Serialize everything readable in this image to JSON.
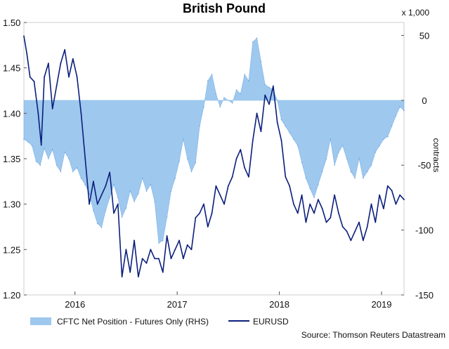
{
  "chart_data": {
    "type": "area",
    "title": "British Pound",
    "x_tick_labels": [
      "2016",
      "2017",
      "2018",
      "2019"
    ],
    "x_tick_positions": [
      2016.0,
      2017.0,
      2018.0,
      2019.0
    ],
    "x_range": [
      2015.5,
      2019.22
    ],
    "left_axis": {
      "label": "",
      "range": [
        1.2,
        1.5
      ],
      "ticks": [
        "1.20",
        "1.25",
        "1.30",
        "1.35",
        "1.40",
        "1.45",
        "1.50"
      ]
    },
    "right_axis": {
      "label": "contracts",
      "unit_note": "x 1,000",
      "range": [
        -150,
        60
      ],
      "ticks": [
        "50",
        "0",
        "-50",
        "-100",
        "-150"
      ]
    },
    "legend": {
      "placement": "bottom",
      "items": [
        "CFTC Net Position - Futures Only (RHS)",
        "EURUSD"
      ]
    },
    "source": "Source: Thomson Reuters Datastream",
    "series": [
      {
        "name": "CFTC Net Position - Futures Only (RHS)",
        "axis": "right",
        "style": "area",
        "color": "#9ec8ee",
        "points": [
          [
            2015.5,
            -30
          ],
          [
            2015.54,
            -32
          ],
          [
            2015.58,
            -35
          ],
          [
            2015.62,
            -47
          ],
          [
            2015.66,
            -50
          ],
          [
            2015.7,
            -37
          ],
          [
            2015.74,
            -45
          ],
          [
            2015.78,
            -38
          ],
          [
            2015.82,
            -50
          ],
          [
            2015.86,
            -55
          ],
          [
            2015.9,
            -40
          ],
          [
            2015.94,
            -45
          ],
          [
            2015.98,
            -55
          ],
          [
            2016.02,
            -52
          ],
          [
            2016.06,
            -60
          ],
          [
            2016.1,
            -65
          ],
          [
            2016.14,
            -72
          ],
          [
            2016.18,
            -85
          ],
          [
            2016.22,
            -95
          ],
          [
            2016.26,
            -98
          ],
          [
            2016.3,
            -85
          ],
          [
            2016.34,
            -75
          ],
          [
            2016.38,
            -65
          ],
          [
            2016.42,
            -75
          ],
          [
            2016.46,
            -90
          ],
          [
            2016.5,
            -83
          ],
          [
            2016.54,
            -70
          ],
          [
            2016.58,
            -78
          ],
          [
            2016.62,
            -72
          ],
          [
            2016.66,
            -60
          ],
          [
            2016.7,
            -70
          ],
          [
            2016.74,
            -65
          ],
          [
            2016.78,
            -78
          ],
          [
            2016.82,
            -110
          ],
          [
            2016.86,
            -108
          ],
          [
            2016.9,
            -90
          ],
          [
            2016.94,
            -70
          ],
          [
            2016.98,
            -60
          ],
          [
            2017.02,
            -47
          ],
          [
            2017.06,
            -30
          ],
          [
            2017.1,
            -45
          ],
          [
            2017.14,
            -55
          ],
          [
            2017.18,
            -48
          ],
          [
            2017.22,
            -20
          ],
          [
            2017.26,
            -5
          ],
          [
            2017.3,
            15
          ],
          [
            2017.34,
            20
          ],
          [
            2017.38,
            5
          ],
          [
            2017.42,
            -5
          ],
          [
            2017.46,
            2
          ],
          [
            2017.5,
            0
          ],
          [
            2017.54,
            -2
          ],
          [
            2017.58,
            8
          ],
          [
            2017.62,
            5
          ],
          [
            2017.66,
            20
          ],
          [
            2017.7,
            15
          ],
          [
            2017.74,
            45
          ],
          [
            2017.78,
            48
          ],
          [
            2017.82,
            30
          ],
          [
            2017.86,
            12
          ],
          [
            2017.9,
            10
          ],
          [
            2017.94,
            8
          ],
          [
            2017.98,
            0
          ],
          [
            2018.02,
            -15
          ],
          [
            2018.06,
            -20
          ],
          [
            2018.1,
            -25
          ],
          [
            2018.14,
            -30
          ],
          [
            2018.18,
            -35
          ],
          [
            2018.22,
            -48
          ],
          [
            2018.26,
            -60
          ],
          [
            2018.3,
            -68
          ],
          [
            2018.34,
            -75
          ],
          [
            2018.38,
            -65
          ],
          [
            2018.42,
            -55
          ],
          [
            2018.46,
            -45
          ],
          [
            2018.5,
            -30
          ],
          [
            2018.54,
            -50
          ],
          [
            2018.58,
            -40
          ],
          [
            2018.62,
            -35
          ],
          [
            2018.66,
            -45
          ],
          [
            2018.7,
            -55
          ],
          [
            2018.74,
            -60
          ],
          [
            2018.78,
            -45
          ],
          [
            2018.82,
            -60
          ],
          [
            2018.86,
            -55
          ],
          [
            2018.9,
            -50
          ],
          [
            2018.94,
            -40
          ],
          [
            2018.98,
            -35
          ],
          [
            2019.02,
            -30
          ],
          [
            2019.06,
            -28
          ],
          [
            2019.1,
            -20
          ],
          [
            2019.14,
            -12
          ],
          [
            2019.18,
            -5
          ],
          [
            2019.22,
            -8
          ]
        ]
      },
      {
        "name": "EURUSD",
        "axis": "left",
        "style": "line",
        "color": "#0b1f7c",
        "points": [
          [
            2015.5,
            1.485
          ],
          [
            2015.53,
            1.465
          ],
          [
            2015.56,
            1.44
          ],
          [
            2015.6,
            1.435
          ],
          [
            2015.64,
            1.4
          ],
          [
            2015.67,
            1.365
          ],
          [
            2015.7,
            1.44
          ],
          [
            2015.74,
            1.455
          ],
          [
            2015.78,
            1.405
          ],
          [
            2015.82,
            1.43
          ],
          [
            2015.86,
            1.455
          ],
          [
            2015.9,
            1.47
          ],
          [
            2015.94,
            1.44
          ],
          [
            2015.98,
            1.46
          ],
          [
            2016.02,
            1.44
          ],
          [
            2016.06,
            1.4
          ],
          [
            2016.1,
            1.35
          ],
          [
            2016.14,
            1.3
          ],
          [
            2016.18,
            1.325
          ],
          [
            2016.22,
            1.3
          ],
          [
            2016.26,
            1.31
          ],
          [
            2016.3,
            1.32
          ],
          [
            2016.34,
            1.335
          ],
          [
            2016.38,
            1.29
          ],
          [
            2016.42,
            1.3
          ],
          [
            2016.46,
            1.22
          ],
          [
            2016.5,
            1.25
          ],
          [
            2016.54,
            1.225
          ],
          [
            2016.58,
            1.26
          ],
          [
            2016.62,
            1.22
          ],
          [
            2016.66,
            1.24
          ],
          [
            2016.7,
            1.235
          ],
          [
            2016.74,
            1.25
          ],
          [
            2016.78,
            1.24
          ],
          [
            2016.82,
            1.24
          ],
          [
            2016.86,
            1.225
          ],
          [
            2016.9,
            1.265
          ],
          [
            2016.94,
            1.24
          ],
          [
            2016.98,
            1.25
          ],
          [
            2017.02,
            1.26
          ],
          [
            2017.06,
            1.24
          ],
          [
            2017.1,
            1.255
          ],
          [
            2017.14,
            1.25
          ],
          [
            2017.18,
            1.285
          ],
          [
            2017.22,
            1.29
          ],
          [
            2017.26,
            1.3
          ],
          [
            2017.3,
            1.275
          ],
          [
            2017.34,
            1.29
          ],
          [
            2017.38,
            1.32
          ],
          [
            2017.42,
            1.31
          ],
          [
            2017.46,
            1.3
          ],
          [
            2017.5,
            1.32
          ],
          [
            2017.54,
            1.33
          ],
          [
            2017.58,
            1.35
          ],
          [
            2017.62,
            1.36
          ],
          [
            2017.66,
            1.34
          ],
          [
            2017.7,
            1.33
          ],
          [
            2017.74,
            1.37
          ],
          [
            2017.78,
            1.4
          ],
          [
            2017.82,
            1.38
          ],
          [
            2017.86,
            1.42
          ],
          [
            2017.9,
            1.41
          ],
          [
            2017.94,
            1.43
          ],
          [
            2017.98,
            1.39
          ],
          [
            2018.02,
            1.37
          ],
          [
            2018.06,
            1.33
          ],
          [
            2018.1,
            1.32
          ],
          [
            2018.14,
            1.3
          ],
          [
            2018.18,
            1.29
          ],
          [
            2018.22,
            1.31
          ],
          [
            2018.26,
            1.28
          ],
          [
            2018.3,
            1.3
          ],
          [
            2018.34,
            1.29
          ],
          [
            2018.38,
            1.305
          ],
          [
            2018.42,
            1.295
          ],
          [
            2018.46,
            1.28
          ],
          [
            2018.5,
            1.285
          ],
          [
            2018.54,
            1.31
          ],
          [
            2018.58,
            1.29
          ],
          [
            2018.62,
            1.275
          ],
          [
            2018.66,
            1.27
          ],
          [
            2018.7,
            1.26
          ],
          [
            2018.74,
            1.27
          ],
          [
            2018.78,
            1.28
          ],
          [
            2018.82,
            1.26
          ],
          [
            2018.86,
            1.275
          ],
          [
            2018.9,
            1.3
          ],
          [
            2018.94,
            1.28
          ],
          [
            2018.98,
            1.31
          ],
          [
            2019.02,
            1.295
          ],
          [
            2019.06,
            1.32
          ],
          [
            2019.1,
            1.315
          ],
          [
            2019.14,
            1.3
          ],
          [
            2019.18,
            1.31
          ],
          [
            2019.22,
            1.305
          ]
        ]
      }
    ]
  }
}
